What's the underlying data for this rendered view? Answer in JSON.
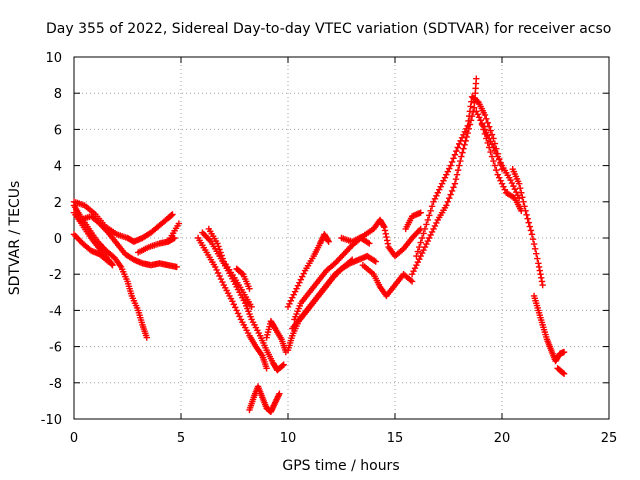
{
  "chart_data": {
    "type": "scatter",
    "title": "Day 355 of 2022, Sidereal Day-to-day VTEC variation (SDTVAR) for receiver acso",
    "xlabel": "GPS time / hours",
    "ylabel": "SDTVAR / TECUs",
    "xlim": [
      0,
      25
    ],
    "ylim": [
      -10,
      10
    ],
    "xticks": [
      0,
      5,
      10,
      15,
      20,
      25
    ],
    "yticks": [
      -10,
      -8,
      -6,
      -4,
      -2,
      0,
      2,
      4,
      6,
      8,
      10
    ],
    "grid": true,
    "marker": "+",
    "series": [
      {
        "name": "SDTVAR",
        "color": "#ff0000",
        "segments": [
          [
            [
              0.0,
              1.8
            ],
            [
              0.3,
              1.2
            ],
            [
              0.7,
              0.5
            ],
            [
              1.1,
              -0.2
            ],
            [
              1.5,
              -0.7
            ],
            [
              1.9,
              -1.1
            ],
            [
              2.2,
              -1.6
            ],
            [
              2.5,
              -2.4
            ],
            [
              2.7,
              -3.2
            ],
            [
              3.0,
              -4.0
            ],
            [
              3.2,
              -4.8
            ],
            [
              3.4,
              -5.5
            ]
          ],
          [
            [
              0.0,
              1.4
            ],
            [
              0.4,
              0.7
            ],
            [
              0.8,
              0.0
            ],
            [
              1.2,
              -0.6
            ],
            [
              1.6,
              -1.2
            ],
            [
              1.8,
              -1.5
            ]
          ],
          [
            [
              0.0,
              0.2
            ],
            [
              0.4,
              -0.3
            ],
            [
              0.8,
              -0.7
            ],
            [
              1.2,
              -0.9
            ],
            [
              1.6,
              -1.3
            ]
          ],
          [
            [
              0.0,
              2.0
            ],
            [
              0.5,
              1.8
            ],
            [
              1.0,
              1.3
            ],
            [
              1.5,
              0.6
            ],
            [
              2.0,
              0.2
            ],
            [
              2.5,
              0.0
            ],
            [
              2.8,
              -0.2
            ],
            [
              3.2,
              0.0
            ],
            [
              3.6,
              0.3
            ],
            [
              4.0,
              0.7
            ],
            [
              4.4,
              1.1
            ],
            [
              4.6,
              1.3
            ]
          ],
          [
            [
              0.3,
              1.0
            ],
            [
              0.8,
              1.2
            ],
            [
              1.2,
              0.8
            ],
            [
              1.6,
              0.3
            ],
            [
              2.0,
              -0.3
            ],
            [
              2.4,
              -0.9
            ],
            [
              2.8,
              -1.2
            ],
            [
              3.2,
              -1.4
            ],
            [
              3.6,
              -1.5
            ],
            [
              4.0,
              -1.4
            ],
            [
              4.4,
              -1.5
            ],
            [
              4.8,
              -1.6
            ]
          ],
          [
            [
              3.0,
              -0.8
            ],
            [
              3.5,
              -0.5
            ],
            [
              4.0,
              -0.3
            ],
            [
              4.4,
              -0.2
            ],
            [
              4.7,
              0.0
            ]
          ],
          [
            [
              4.5,
              0.0
            ],
            [
              4.9,
              0.8
            ]
          ],
          [
            [
              6.0,
              0.3
            ],
            [
              6.4,
              -0.2
            ],
            [
              6.8,
              -1.0
            ],
            [
              7.2,
              -1.8
            ],
            [
              7.6,
              -2.7
            ],
            [
              8.0,
              -3.6
            ],
            [
              8.3,
              -4.5
            ],
            [
              8.7,
              -5.4
            ],
            [
              9.0,
              -6.2
            ],
            [
              9.3,
              -6.9
            ],
            [
              9.5,
              -7.3
            ],
            [
              9.8,
              -7.0
            ]
          ],
          [
            [
              5.8,
              0.0
            ],
            [
              6.2,
              -0.8
            ],
            [
              6.6,
              -1.6
            ],
            [
              7.0,
              -2.6
            ],
            [
              7.4,
              -3.5
            ],
            [
              7.8,
              -4.5
            ],
            [
              8.2,
              -5.4
            ],
            [
              8.5,
              -6.0
            ],
            [
              8.8,
              -6.5
            ],
            [
              9.0,
              -7.2
            ]
          ],
          [
            [
              6.3,
              0.5
            ],
            [
              6.7,
              -0.3
            ],
            [
              7.0,
              -1.3
            ],
            [
              7.5,
              -2.2
            ],
            [
              7.9,
              -3.0
            ],
            [
              8.3,
              -3.8
            ]
          ],
          [
            [
              7.6,
              -1.7
            ],
            [
              7.9,
              -2.0
            ],
            [
              8.2,
              -2.8
            ]
          ],
          [
            [
              8.2,
              -9.5
            ],
            [
              8.4,
              -8.8
            ],
            [
              8.6,
              -8.2
            ],
            [
              8.8,
              -8.8
            ],
            [
              9.0,
              -9.4
            ],
            [
              9.2,
              -9.6
            ],
            [
              9.4,
              -9.1
            ],
            [
              9.6,
              -8.6
            ]
          ],
          [
            [
              9.0,
              -5.5
            ],
            [
              9.2,
              -4.6
            ],
            [
              9.4,
              -5.0
            ],
            [
              9.7,
              -5.6
            ],
            [
              9.9,
              -6.3
            ]
          ],
          [
            [
              10.0,
              -6.2
            ],
            [
              10.2,
              -5.4
            ],
            [
              10.5,
              -4.6
            ],
            [
              10.9,
              -4.0
            ],
            [
              11.3,
              -3.4
            ],
            [
              11.7,
              -2.8
            ],
            [
              12.1,
              -2.2
            ],
            [
              12.5,
              -1.7
            ],
            [
              12.9,
              -1.4
            ],
            [
              13.3,
              -1.2
            ],
            [
              13.7,
              -1.0
            ],
            [
              14.1,
              -1.3
            ]
          ],
          [
            [
              10.0,
              -3.8
            ],
            [
              10.4,
              -2.8
            ],
            [
              10.8,
              -1.8
            ],
            [
              11.2,
              -1.0
            ],
            [
              11.5,
              -0.3
            ],
            [
              11.7,
              0.2
            ],
            [
              11.9,
              -0.2
            ]
          ],
          [
            [
              10.3,
              -4.5
            ],
            [
              10.6,
              -3.6
            ],
            [
              11.0,
              -3.0
            ],
            [
              11.4,
              -2.4
            ],
            [
              11.8,
              -1.8
            ],
            [
              12.2,
              -1.4
            ],
            [
              12.6,
              -0.9
            ],
            [
              13.0,
              -0.4
            ],
            [
              13.4,
              0.0
            ],
            [
              13.8,
              -0.3
            ]
          ],
          [
            [
              10.2,
              -5.0
            ],
            [
              10.6,
              -4.4
            ],
            [
              11.0,
              -3.8
            ],
            [
              11.4,
              -3.2
            ],
            [
              11.8,
              -2.6
            ],
            [
              12.2,
              -2.0
            ],
            [
              12.6,
              -1.6
            ],
            [
              13.0,
              -1.2
            ]
          ],
          [
            [
              12.5,
              0.0
            ],
            [
              13.0,
              -0.2
            ],
            [
              13.5,
              0.1
            ],
            [
              14.0,
              0.5
            ],
            [
              14.3,
              1.0
            ],
            [
              14.5,
              0.6
            ],
            [
              14.7,
              -0.5
            ],
            [
              15.0,
              -1.0
            ],
            [
              15.4,
              -0.6
            ],
            [
              15.8,
              0.0
            ],
            [
              16.2,
              0.5
            ]
          ],
          [
            [
              13.5,
              -1.5
            ],
            [
              14.0,
              -2.0
            ],
            [
              14.3,
              -2.7
            ],
            [
              14.6,
              -3.2
            ],
            [
              15.0,
              -2.6
            ],
            [
              15.4,
              -2.0
            ],
            [
              15.8,
              -2.4
            ]
          ],
          [
            [
              15.5,
              0.5
            ],
            [
              15.8,
              1.2
            ],
            [
              16.2,
              1.4
            ]
          ],
          [
            [
              15.8,
              -2.0
            ],
            [
              16.2,
              -1.0
            ],
            [
              16.6,
              0.0
            ],
            [
              17.0,
              1.0
            ],
            [
              17.4,
              1.8
            ],
            [
              17.8,
              3.0
            ],
            [
              18.1,
              4.5
            ],
            [
              18.4,
              5.8
            ],
            [
              18.7,
              7.2
            ],
            [
              18.8,
              8.8
            ]
          ],
          [
            [
              16.0,
              -1.0
            ],
            [
              16.4,
              0.5
            ],
            [
              16.8,
              2.0
            ],
            [
              17.2,
              3.0
            ],
            [
              17.6,
              4.0
            ],
            [
              18.0,
              5.2
            ],
            [
              18.4,
              6.2
            ],
            [
              18.6,
              7.8
            ],
            [
              18.9,
              7.5
            ],
            [
              19.2,
              6.8
            ],
            [
              19.6,
              5.5
            ],
            [
              20.0,
              3.8
            ]
          ],
          [
            [
              18.8,
              7.0
            ],
            [
              19.2,
              6.0
            ],
            [
              19.6,
              5.0
            ],
            [
              20.0,
              4.0
            ],
            [
              20.4,
              3.2
            ],
            [
              20.8,
              2.2
            ]
          ],
          [
            [
              19.0,
              6.5
            ],
            [
              19.4,
              5.0
            ],
            [
              19.8,
              3.5
            ],
            [
              20.2,
              2.5
            ],
            [
              20.6,
              2.2
            ],
            [
              20.9,
              1.5
            ]
          ],
          [
            [
              20.5,
              3.8
            ],
            [
              20.8,
              3.0
            ],
            [
              21.1,
              1.5
            ],
            [
              21.4,
              0.2
            ],
            [
              21.7,
              -1.4
            ],
            [
              21.9,
              -2.6
            ]
          ],
          [
            [
              21.5,
              -3.2
            ],
            [
              21.7,
              -4.0
            ],
            [
              21.9,
              -4.8
            ],
            [
              22.1,
              -5.6
            ],
            [
              22.3,
              -6.2
            ],
            [
              22.5,
              -6.8
            ],
            [
              22.7,
              -6.4
            ],
            [
              22.9,
              -6.3
            ]
          ],
          [
            [
              22.6,
              -7.2
            ],
            [
              22.9,
              -7.5
            ]
          ]
        ]
      }
    ]
  }
}
